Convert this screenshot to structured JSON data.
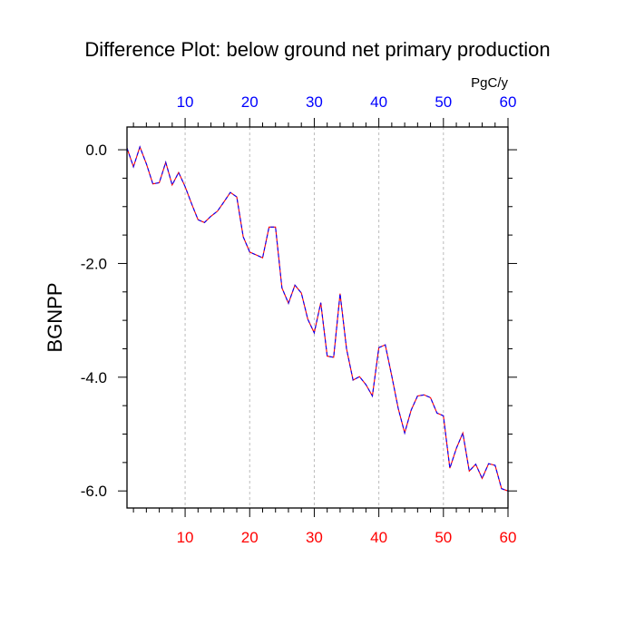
{
  "chart_data": {
    "type": "line",
    "title": "Difference Plot: below ground net primary production",
    "units": "PgC/y",
    "ylabel": "BGNPP",
    "xlim": [
      1,
      60
    ],
    "ylim": [
      -6.3,
      0.4
    ],
    "x_ticks_major": [
      10,
      20,
      30,
      40,
      50,
      60
    ],
    "y_ticks_major": [
      0.0,
      -2.0,
      -4.0,
      -6.0
    ],
    "y_tick_labels": [
      "0.0",
      "-2.0",
      "-4.0",
      "-6.0"
    ],
    "x_tick_labels": [
      "10",
      "20",
      "30",
      "40",
      "50",
      "60"
    ],
    "grid": "vertical-dashed",
    "colors": {
      "bottom_ticks": "#ff0000",
      "top_ticks": "#0000ff",
      "series_dash_a": "#ff0000",
      "series_dash_b": "#0000ff",
      "grid": "#bbbbbb",
      "frame": "#000000"
    },
    "series": [
      {
        "x": [
          1,
          2,
          3,
          4,
          5,
          6,
          7,
          8,
          9,
          10,
          11,
          12,
          13,
          14,
          15,
          16,
          17,
          18,
          19,
          20,
          21,
          22,
          23,
          24,
          25,
          26,
          27,
          28,
          29,
          30,
          31,
          32,
          33,
          34,
          35,
          36,
          37,
          38,
          39,
          40,
          41,
          42,
          43,
          44,
          45,
          46,
          47,
          48,
          49,
          50,
          51,
          52,
          53,
          54,
          55,
          56,
          57,
          58,
          59,
          60
        ],
        "values": [
          0.03,
          -0.3,
          0.05,
          -0.25,
          -0.6,
          -0.58,
          -0.22,
          -0.62,
          -0.4,
          -0.65,
          -0.95,
          -1.23,
          -1.28,
          -1.17,
          -1.08,
          -0.92,
          -0.75,
          -0.83,
          -1.53,
          -1.8,
          -1.85,
          -1.9,
          -1.36,
          -1.36,
          -2.43,
          -2.7,
          -2.38,
          -2.52,
          -2.98,
          -3.22,
          -2.69,
          -3.63,
          -3.65,
          -2.53,
          -3.5,
          -4.05,
          -3.99,
          -4.13,
          -4.33,
          -3.48,
          -3.43,
          -3.98,
          -4.55,
          -4.98,
          -4.58,
          -4.33,
          -4.31,
          -4.36,
          -4.63,
          -4.68,
          -5.6,
          -5.25,
          -4.98,
          -5.65,
          -5.53,
          -5.78,
          -5.52,
          -5.55,
          -5.96,
          -6.0
        ]
      }
    ]
  }
}
